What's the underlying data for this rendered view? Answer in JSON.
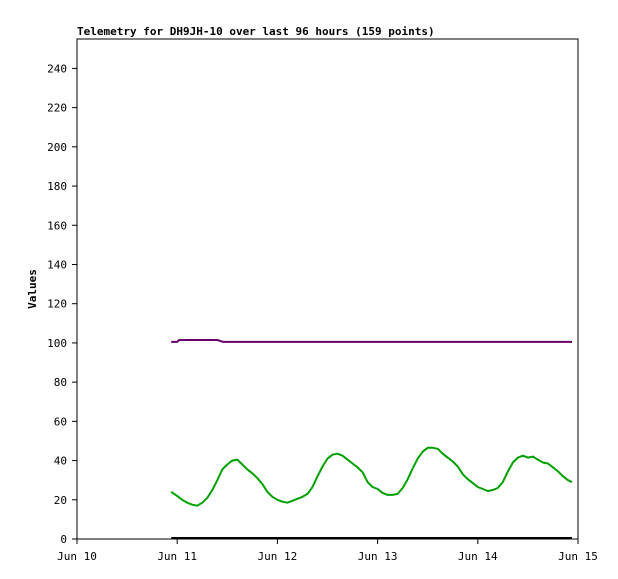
{
  "chart_data": {
    "type": "line",
    "title": "Telemetry for DH9JH-10 over last 96 hours (159 points)",
    "xlabel": "",
    "ylabel": "Values",
    "xlim": [
      0,
      5
    ],
    "ylim": [
      0,
      255
    ],
    "x_ticks": [
      {
        "value": 0,
        "label": "Jun 10"
      },
      {
        "value": 1,
        "label": "Jun 11"
      },
      {
        "value": 2,
        "label": "Jun 12"
      },
      {
        "value": 3,
        "label": "Jun 13"
      },
      {
        "value": 4,
        "label": "Jun 14"
      },
      {
        "value": 5,
        "label": "Jun 15"
      }
    ],
    "y_ticks": [
      0,
      20,
      40,
      60,
      80,
      100,
      120,
      140,
      160,
      180,
      200,
      220,
      240
    ],
    "grid": false,
    "legend": "none",
    "series": [
      {
        "color": "#660066",
        "points": [
          [
            0.94,
            100.5
          ],
          [
            1.0,
            100.5
          ],
          [
            1.02,
            101.5
          ],
          [
            1.1,
            101.5
          ],
          [
            1.2,
            101.5
          ],
          [
            1.3,
            101.5
          ],
          [
            1.4,
            101.5
          ],
          [
            1.46,
            100.5
          ],
          [
            1.6,
            100.5
          ],
          [
            2.0,
            100.5
          ],
          [
            2.5,
            100.5
          ],
          [
            3.0,
            100.5
          ],
          [
            3.5,
            100.5
          ],
          [
            4.0,
            100.5
          ],
          [
            4.5,
            100.5
          ],
          [
            4.94,
            100.5
          ]
        ]
      },
      {
        "color": "#00a000",
        "points": [
          [
            0.94,
            24
          ],
          [
            1.0,
            22
          ],
          [
            1.05,
            20
          ],
          [
            1.1,
            18.5
          ],
          [
            1.15,
            17.5
          ],
          [
            1.2,
            17
          ],
          [
            1.25,
            18.5
          ],
          [
            1.3,
            21
          ],
          [
            1.35,
            25
          ],
          [
            1.4,
            30
          ],
          [
            1.45,
            35.5
          ],
          [
            1.5,
            38
          ],
          [
            1.55,
            40
          ],
          [
            1.6,
            40.5
          ],
          [
            1.65,
            38
          ],
          [
            1.7,
            35.5
          ],
          [
            1.75,
            33.5
          ],
          [
            1.8,
            31
          ],
          [
            1.85,
            28
          ],
          [
            1.9,
            24
          ],
          [
            1.95,
            21.5
          ],
          [
            2.0,
            20
          ],
          [
            2.05,
            19
          ],
          [
            2.1,
            18.5
          ],
          [
            2.15,
            19.5
          ],
          [
            2.2,
            20.5
          ],
          [
            2.25,
            21.5
          ],
          [
            2.3,
            23
          ],
          [
            2.35,
            26.5
          ],
          [
            2.4,
            32
          ],
          [
            2.45,
            37
          ],
          [
            2.5,
            41
          ],
          [
            2.55,
            43
          ],
          [
            2.6,
            43.5
          ],
          [
            2.65,
            42.5
          ],
          [
            2.7,
            40.5
          ],
          [
            2.75,
            38.5
          ],
          [
            2.8,
            36.5
          ],
          [
            2.85,
            34
          ],
          [
            2.9,
            29
          ],
          [
            2.95,
            26.5
          ],
          [
            3.0,
            25.5
          ],
          [
            3.05,
            23.5
          ],
          [
            3.1,
            22.5
          ],
          [
            3.15,
            22.5
          ],
          [
            3.2,
            23
          ],
          [
            3.25,
            26
          ],
          [
            3.3,
            30.5
          ],
          [
            3.35,
            36
          ],
          [
            3.4,
            41
          ],
          [
            3.45,
            44.5
          ],
          [
            3.5,
            46.5
          ],
          [
            3.55,
            46.5
          ],
          [
            3.6,
            46
          ],
          [
            3.65,
            43.5
          ],
          [
            3.7,
            41.5
          ],
          [
            3.75,
            39.5
          ],
          [
            3.8,
            37
          ],
          [
            3.85,
            33
          ],
          [
            3.9,
            30.5
          ],
          [
            3.95,
            28.5
          ],
          [
            4.0,
            26.5
          ],
          [
            4.05,
            25.5
          ],
          [
            4.1,
            24.5
          ],
          [
            4.15,
            25
          ],
          [
            4.2,
            26
          ],
          [
            4.25,
            29
          ],
          [
            4.3,
            34.5
          ],
          [
            4.35,
            39
          ],
          [
            4.4,
            41.5
          ],
          [
            4.45,
            42.5
          ],
          [
            4.5,
            41.5
          ],
          [
            4.55,
            42
          ],
          [
            4.6,
            40.5
          ],
          [
            4.65,
            39
          ],
          [
            4.7,
            38.5
          ],
          [
            4.75,
            36.5
          ],
          [
            4.8,
            34.5
          ],
          [
            4.85,
            32
          ],
          [
            4.9,
            30
          ],
          [
            4.94,
            29
          ]
        ]
      },
      {
        "color": "#000000",
        "points": [
          [
            0.94,
            0.5
          ],
          [
            4.94,
            0.5
          ]
        ]
      }
    ]
  }
}
